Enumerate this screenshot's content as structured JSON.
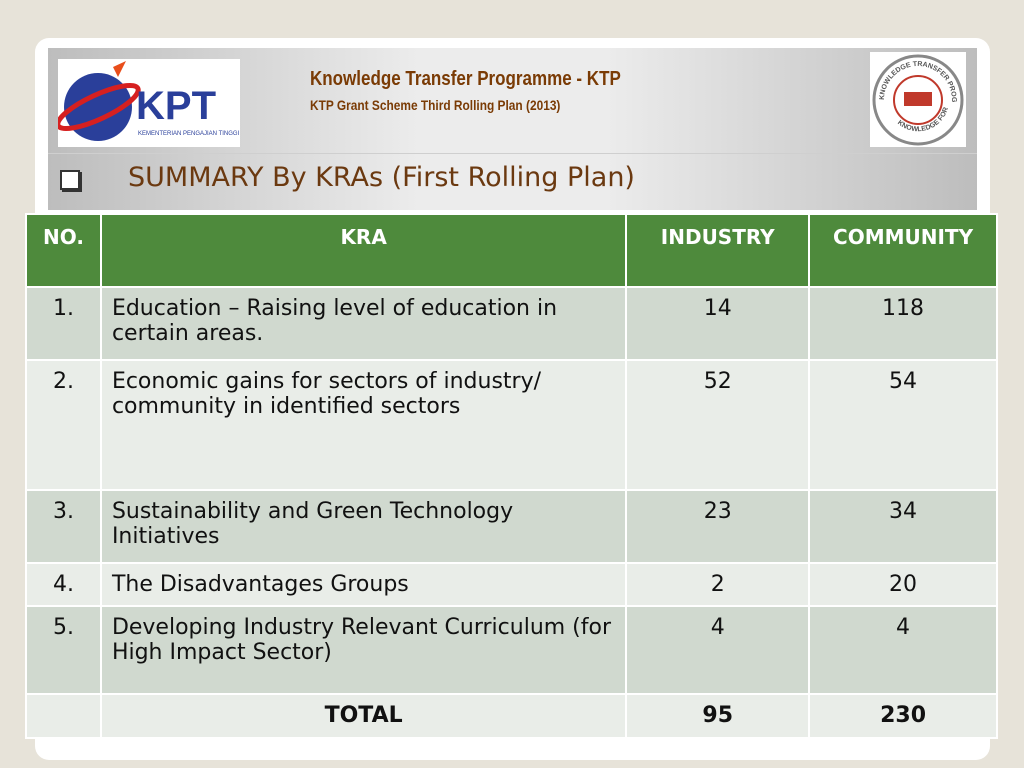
{
  "header": {
    "title": "Knowledge Transfer Programme - KTP",
    "subtitle": "KTP Grant Scheme Third Rolling Plan (2013)",
    "left_logo": {
      "text": "KPT",
      "caption": "KEMENTERIAN PENGAJIAN TINGGI"
    },
    "right_logo": {
      "top_text": "KNOWLEDGE TRANSFER PROGRAMME",
      "bottom_text": "KNOWLEDGE FOR ALL"
    }
  },
  "heading": "SUMMARY By KRAs (First Rolling Plan)",
  "table": {
    "columns": [
      "NO.",
      "KRA",
      "INDUSTRY",
      "COMMUNITY"
    ],
    "rows": [
      [
        "1.",
        "Education – Raising level of education in certain areas.",
        14,
        118
      ],
      [
        "2.",
        "Economic gains for sectors of industry/ community in identified sectors",
        52,
        54
      ],
      [
        "3.",
        "Sustainability and Green Technology Initiatives",
        23,
        34
      ],
      [
        "4.",
        "The Disadvantages Groups",
        2,
        20
      ],
      [
        "5.",
        "Developing Industry Relevant Curriculum (for High Impact Sector)",
        4,
        4
      ]
    ],
    "total": {
      "label": "TOTAL",
      "industry": 95,
      "community": 230
    }
  }
}
